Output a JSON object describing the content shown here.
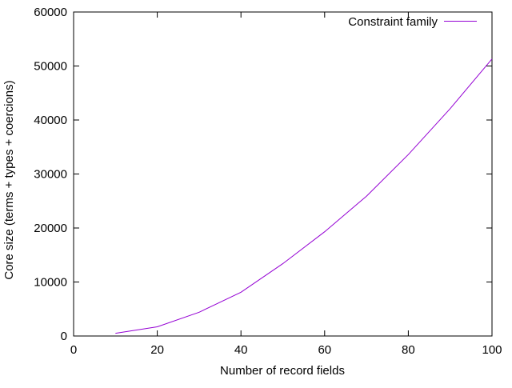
{
  "chart_data": {
    "type": "line",
    "title": "",
    "xlabel": "Number of record fields",
    "ylabel": "Core size (terms + types + coercions)",
    "xlim": [
      0,
      100
    ],
    "ylim": [
      0,
      60000
    ],
    "xticks": [
      0,
      20,
      40,
      60,
      80,
      100
    ],
    "yticks": [
      0,
      10000,
      20000,
      30000,
      40000,
      50000,
      60000
    ],
    "grid": false,
    "legend_position": "top-right-inside",
    "series": [
      {
        "name": "Constraint family",
        "color": "#9400d3",
        "x": [
          10,
          20,
          30,
          40,
          50,
          60,
          70,
          80,
          90,
          100
        ],
        "y": [
          500,
          1700,
          4400,
          8100,
          13400,
          19300,
          25900,
          33600,
          42100,
          51300
        ]
      }
    ]
  }
}
